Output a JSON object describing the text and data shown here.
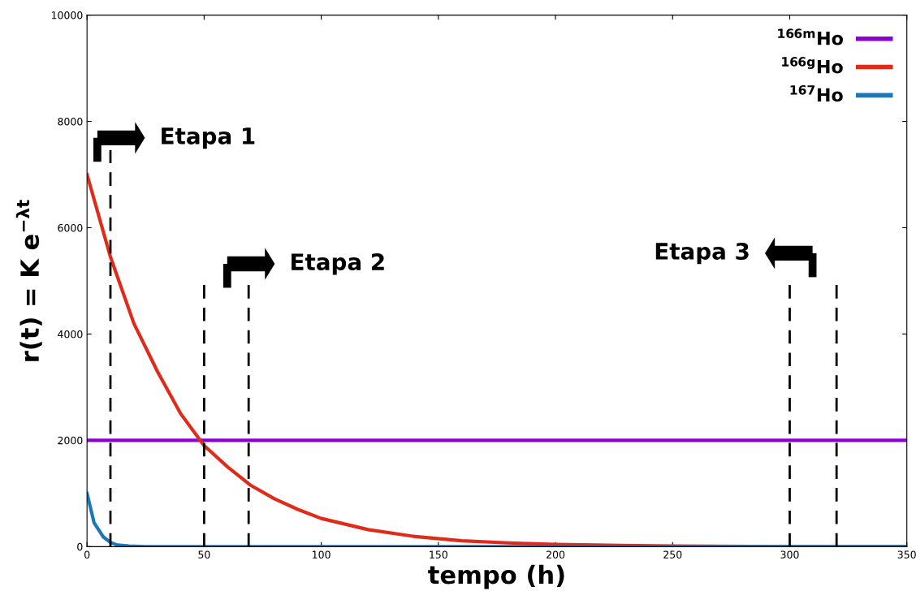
{
  "chart_data": {
    "type": "line",
    "xlabel": "tempo (h)",
    "ylabel": "r(t) = K e$^{−λt}$",
    "xlim": [
      0,
      350
    ],
    "xticks": [
      0,
      50,
      100,
      150,
      200,
      250,
      300,
      350
    ],
    "ylim": [
      0,
      10000
    ],
    "yticks": [
      0,
      2000,
      4000,
      6000,
      8000,
      10000
    ],
    "grid": false,
    "legend": "top right",
    "marker": "none",
    "line_style": "solid",
    "series": [
      {
        "name": "$^{166m}$Ho",
        "color": "#8a00d4",
        "x": [
          0,
          350
        ],
        "values": [
          2000,
          2000
        ]
      },
      {
        "name": "$^{166g}$Ho",
        "color": "#e02a1a",
        "x": [
          0,
          10,
          20,
          30,
          40,
          50,
          60,
          70,
          80,
          90,
          100,
          120,
          140,
          160,
          180,
          200,
          250,
          300,
          350
        ],
        "values": [
          7000,
          5450,
          4200,
          3300,
          2500,
          1900,
          1500,
          1150,
          900,
          700,
          530,
          320,
          190,
          110,
          70,
          40,
          10,
          0,
          0
        ]
      },
      {
        "name": "$^{167}$Ho",
        "color": "#1a78b8",
        "x": [
          0,
          3,
          7,
          10,
          13,
          18,
          25,
          350
        ],
        "values": [
          1000,
          450,
          180,
          80,
          30,
          10,
          0,
          0
        ]
      }
    ],
    "ref_lines": [
      {
        "axis": "x",
        "value": 10,
        "color": "#000000",
        "line_style": "dashed"
      },
      {
        "axis": "x",
        "value": 50,
        "color": "#000000",
        "line_style": "dashed"
      },
      {
        "axis": "x",
        "value": 69,
        "color": "#000000",
        "line_style": "dashed"
      },
      {
        "axis": "x",
        "value": 300,
        "color": "#000000",
        "line_style": "dashed"
      },
      {
        "axis": "x",
        "value": 320,
        "color": "#000000",
        "line_style": "dashed"
      }
    ],
    "annotations": [
      "Etapa 1",
      "Etapa 2",
      "Etapa 3"
    ]
  }
}
